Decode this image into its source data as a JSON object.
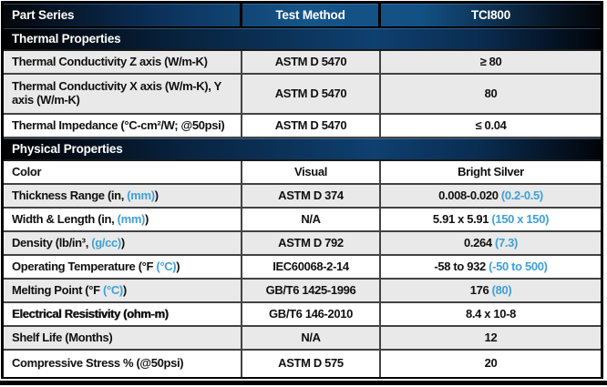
{
  "table": {
    "columns": {
      "part_series": "Part Series",
      "test_method": "Test Method",
      "product": "TCI800"
    },
    "sections": {
      "thermal": "Thermal Properties",
      "physical": "Physical Properties"
    },
    "accent_blue": "#3fa0d5",
    "stripe_grey": "#e9e9e9"
  },
  "rows": [
    {
      "label": {
        "pre": "Thermal Conductivity Z axis (W/m-K)",
        "blue": "",
        "post": ""
      },
      "method": "ASTM D 5470",
      "value": {
        "pre": "≥ 80",
        "blue": "",
        "post": ""
      }
    },
    {
      "label": {
        "pre": "Thermal Conductivity X axis (W/m-K), Y axis (W/m-K)",
        "blue": "",
        "post": ""
      },
      "method": "ASTM D 5470",
      "value": {
        "pre": "80",
        "blue": "",
        "post": ""
      }
    },
    {
      "label": {
        "pre": "Thermal Impedance (°C-cm²/W; @50psi)",
        "blue": "",
        "post": ""
      },
      "method": "ASTM D 5470",
      "value": {
        "pre": "≤ 0.04",
        "blue": "",
        "post": ""
      }
    },
    {
      "label": {
        "pre": "Color",
        "blue": "",
        "post": ""
      },
      "method": "Visual",
      "value": {
        "pre": "Bright Silver",
        "blue": "",
        "post": ""
      }
    },
    {
      "label": {
        "pre": "Thickness Range (in, ",
        "blue": "(mm)",
        "post": ")"
      },
      "method": "ASTM D 374",
      "value": {
        "pre": "0.008-0.020 ",
        "blue": "(0.2-0.5)",
        "post": ""
      }
    },
    {
      "label": {
        "pre": "Width & Length (in, ",
        "blue": "(mm)",
        "post": ")"
      },
      "method": "N/A",
      "value": {
        "pre": "5.91 x 5.91 ",
        "blue": "(150 x 150)",
        "post": ""
      }
    },
    {
      "label": {
        "pre": "Density (lb/in³, ",
        "blue": "(g/cc)",
        "post": ")"
      },
      "method": "ASTM D 792",
      "value": {
        "pre": "0.264 ",
        "blue": "(7.3)",
        "post": ""
      }
    },
    {
      "label": {
        "pre": "Operating Temperature (°F ",
        "blue": "(°C)",
        "post": ")"
      },
      "method": "IEC60068-2-14",
      "value": {
        "pre": "-58 to 932 ",
        "blue": "(-50 to 500)",
        "post": ""
      }
    },
    {
      "label": {
        "pre": "Melting Point (°F ",
        "blue": "(°C)",
        "post": ")"
      },
      "method": "GB/T6 1425-1996",
      "value": {
        "pre": "176 ",
        "blue": "(80)",
        "post": ""
      }
    },
    {
      "label": {
        "pre": "Electrical Resistivity (ohm-m)",
        "blue": "",
        "post": ""
      },
      "method": "GB/T6 146-2010",
      "value": {
        "pre": "8.4 x 10-8",
        "blue": "",
        "post": ""
      }
    },
    {
      "label": {
        "pre": "Shelf Life (Months)",
        "blue": "",
        "post": ""
      },
      "method": "N/A",
      "value": {
        "pre": "12",
        "blue": "",
        "post": ""
      }
    },
    {
      "label": {
        "pre": "Compressive Stress % (@50psi)",
        "blue": "",
        "post": ""
      },
      "method": "ASTM D 575",
      "value": {
        "pre": "20",
        "blue": "",
        "post": ""
      }
    }
  ]
}
